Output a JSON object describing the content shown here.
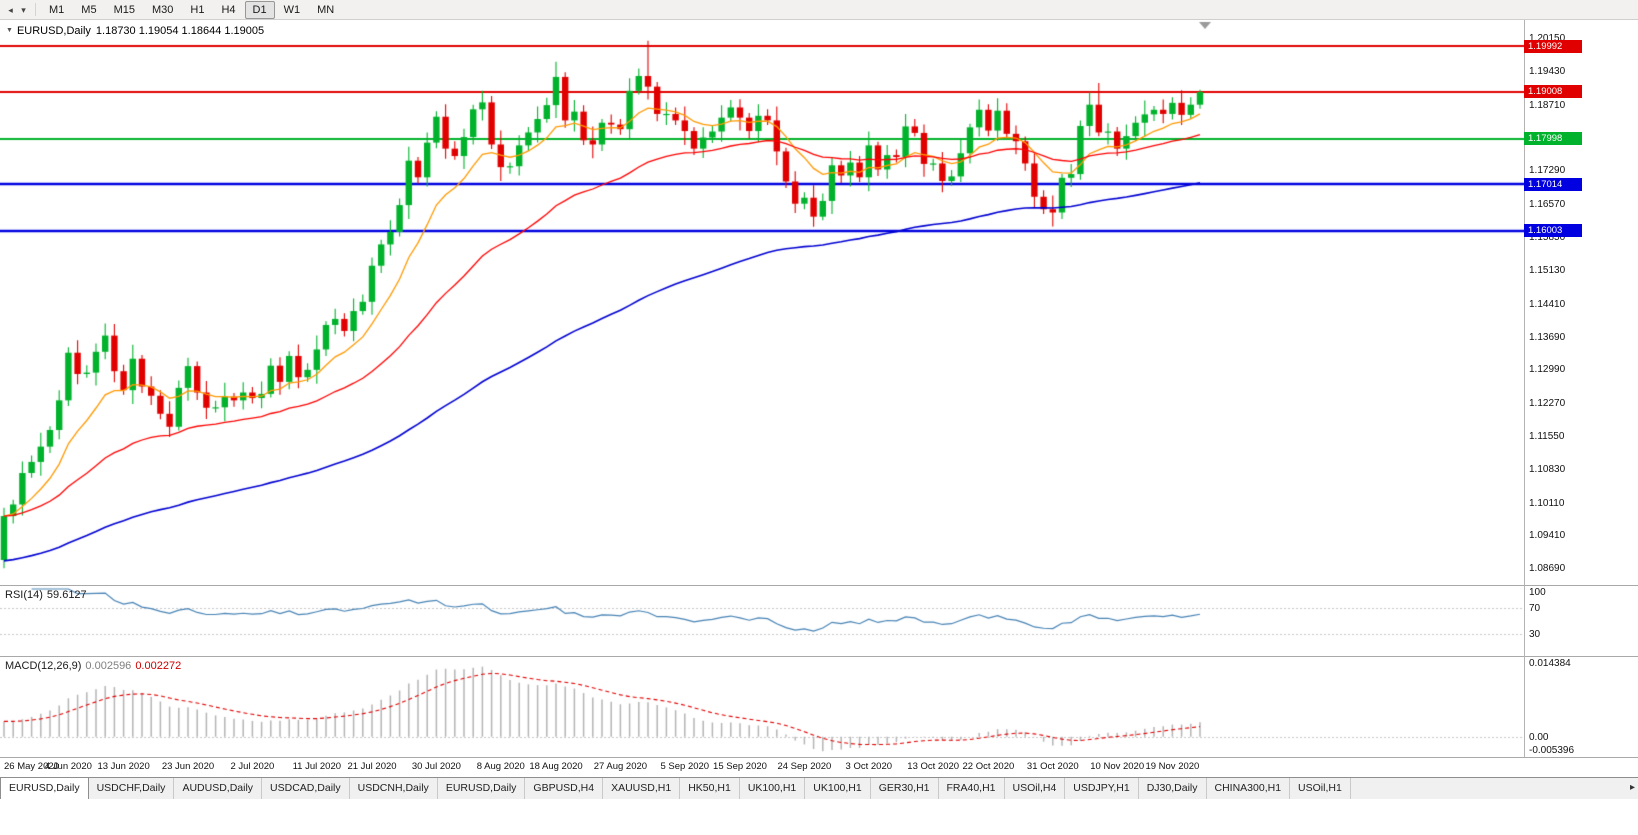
{
  "icons": {
    "collapse_left": "◂",
    "dropdown": "▾",
    "one_click_trading": "▼",
    "tab_scroll_right": "▸"
  },
  "toolbar": {
    "timeframes": [
      "M1",
      "M5",
      "M15",
      "M30",
      "H1",
      "H4",
      "D1",
      "W1",
      "MN"
    ],
    "active_timeframe": "D1"
  },
  "chart": {
    "symbol": "EURUSD,Daily",
    "ohlc_line": "1.18730 1.19054 1.18644 1.19005",
    "open": "1.18730",
    "high": "1.19054",
    "low": "1.18644",
    "close": "1.19005",
    "price_axis_labels": [
      "1.20150",
      "1.19430",
      "1.18710",
      "1.17990",
      "1.17290",
      "1.16570",
      "1.15850",
      "1.15130",
      "1.14410",
      "1.13690",
      "1.12990",
      "1.12270",
      "1.11550",
      "1.10830",
      "1.10110",
      "1.09410",
      "1.08690"
    ],
    "hlines": [
      {
        "label": "1.19992",
        "value": 1.19992,
        "color": "#e10000"
      },
      {
        "label": "1.19008",
        "value": 1.19008,
        "color": "#e10000"
      },
      {
        "label": "1.17998",
        "value": 1.17998,
        "color": "#00b22c"
      },
      {
        "label": "1.17014",
        "value": 1.17014,
        "color": "#0000e0"
      },
      {
        "label": "1.16003",
        "value": 1.16003,
        "color": "#0000e0"
      }
    ],
    "date_labels": [
      "26 May 2020",
      "4 Jun 2020",
      "13 Jun 2020",
      "23 Jun 2020",
      "2 Jul 2020",
      "11 Jul 2020",
      "21 Jul 2020",
      "30 Jul 2020",
      "8 Aug 2020",
      "18 Aug 2020",
      "27 Aug 2020",
      "5 Sep 2020",
      "15 Sep 2020",
      "24 Sep 2020",
      "3 Oct 2020",
      "13 Oct 2020",
      "22 Oct 2020",
      "31 Oct 2020",
      "10 Nov 2020",
      "19 Nov 2020"
    ]
  },
  "rsi_panel": {
    "label": "RSI(14)",
    "value": "59.6127",
    "axis_labels": [
      "100",
      "70",
      "30"
    ],
    "levels": [
      70,
      30
    ]
  },
  "macd_panel": {
    "label": "MACD(12,26,9)",
    "value_main": "0.002596",
    "value_signal": "0.002272",
    "axis_labels": [
      "0.014384",
      "0.00",
      "-0.005396"
    ]
  },
  "tabs": {
    "active_index": 0,
    "items": [
      "EURUSD,Daily",
      "USDCHF,Daily",
      "AUDUSD,Daily",
      "USDCAD,Daily",
      "USDCNH,Daily",
      "EURUSD,Daily",
      "GBPUSD,H4",
      "XAUUSD,H1",
      "HK50,H1",
      "UK100,H1",
      "UK100,H1",
      "GER30,H1",
      "FRA40,H1",
      "USOil,H4",
      "USDJPY,H1",
      "DJ30,Daily",
      "CHINA300,H1",
      "USOil,H1"
    ],
    "active_tab": "EURUSD,Daily"
  },
  "chart_data": {
    "type": "candlestick",
    "symbol": "EURUSD",
    "timeframe": "Daily",
    "x_range": [
      "26 May 2020",
      "24 Nov 2020"
    ],
    "y_axis": {
      "min": 1.0835,
      "max": 1.2056
    },
    "up_color": "#00b22c",
    "down_color": "#e10000",
    "horizontal_levels": [
      1.19992,
      1.19008,
      1.17998,
      1.17014,
      1.16003
    ],
    "moving_averages": [
      {
        "name": "ma-fast",
        "method": "ema",
        "period": 10,
        "color": "#ff9900"
      },
      {
        "name": "ma-medium",
        "method": "ema",
        "period": 32,
        "color": "#ff0000"
      },
      {
        "name": "ma-slow",
        "method": "ema",
        "period": 90,
        "seed": 1.0885,
        "color": "#0000d2"
      }
    ],
    "rsi": {
      "period": 14,
      "current": 59.6127,
      "color": "#4682b4",
      "levels": [
        70,
        30
      ],
      "range": [
        0,
        100
      ]
    },
    "macd": {
      "fast": 12,
      "slow": 26,
      "signal": 9,
      "current_main": 0.002596,
      "current_signal": 0.002272,
      "histogram_color": "#b4b4b4",
      "signal_color": "#e10000",
      "axis_max": 0.014384,
      "axis_min": -0.005396
    },
    "candles": [
      [
        1.0889,
        1.1002,
        1.0871,
        1.0984
      ],
      [
        1.0984,
        1.1019,
        1.0968,
        1.1009
      ],
      [
        1.1009,
        1.1102,
        1.0985,
        1.1077
      ],
      [
        1.1077,
        1.1115,
        1.1067,
        1.1101
      ],
      [
        1.1101,
        1.1164,
        1.1071,
        1.1134
      ],
      [
        1.1134,
        1.1178,
        1.112,
        1.117
      ],
      [
        1.117,
        1.1256,
        1.115,
        1.1234
      ],
      [
        1.1234,
        1.1349,
        1.1222,
        1.1337
      ],
      [
        1.1337,
        1.1364,
        1.1269,
        1.1291
      ],
      [
        1.1291,
        1.131,
        1.1283,
        1.1294
      ],
      [
        1.1294,
        1.1357,
        1.1266,
        1.1339
      ],
      [
        1.1339,
        1.14,
        1.1323,
        1.1374
      ],
      [
        1.1374,
        1.1399,
        1.1273,
        1.1297
      ],
      [
        1.1297,
        1.1311,
        1.1246,
        1.1256
      ],
      [
        1.1256,
        1.1354,
        1.1226,
        1.1324
      ],
      [
        1.1324,
        1.1332,
        1.125,
        1.1264
      ],
      [
        1.1264,
        1.1286,
        1.1224,
        1.1244
      ],
      [
        1.1244,
        1.1256,
        1.1193,
        1.1205
      ],
      [
        1.1205,
        1.1232,
        1.1155,
        1.1177
      ],
      [
        1.1177,
        1.1277,
        1.1169,
        1.1261
      ],
      [
        1.1261,
        1.1326,
        1.1233,
        1.1308
      ],
      [
        1.1308,
        1.1318,
        1.1235,
        1.1251
      ],
      [
        1.1251,
        1.1276,
        1.1194,
        1.1218
      ],
      [
        1.1218,
        1.1233,
        1.1208,
        1.1219
      ],
      [
        1.1219,
        1.1272,
        1.1189,
        1.1242
      ],
      [
        1.1242,
        1.125,
        1.122,
        1.1234
      ],
      [
        1.1234,
        1.1273,
        1.1214,
        1.1251
      ],
      [
        1.1251,
        1.1263,
        1.1227,
        1.1239
      ],
      [
        1.1239,
        1.1275,
        1.1217,
        1.1248
      ],
      [
        1.1248,
        1.1325,
        1.124,
        1.1309
      ],
      [
        1.1309,
        1.1327,
        1.1246,
        1.1274
      ],
      [
        1.1274,
        1.134,
        1.1258,
        1.133
      ],
      [
        1.133,
        1.1355,
        1.126,
        1.1284
      ],
      [
        1.1284,
        1.1314,
        1.1274,
        1.13
      ],
      [
        1.13,
        1.1374,
        1.127,
        1.1344
      ],
      [
        1.1344,
        1.1405,
        1.133,
        1.1397
      ],
      [
        1.1397,
        1.1432,
        1.1377,
        1.141
      ],
      [
        1.141,
        1.1422,
        1.1372,
        1.1384
      ],
      [
        1.1384,
        1.1454,
        1.1362,
        1.1427
      ],
      [
        1.1427,
        1.1463,
        1.1419,
        1.1447
      ],
      [
        1.1447,
        1.1543,
        1.1419,
        1.1525
      ],
      [
        1.1525,
        1.1581,
        1.1509,
        1.1571
      ],
      [
        1.1571,
        1.1623,
        1.1547,
        1.1598
      ],
      [
        1.1598,
        1.167,
        1.1588,
        1.1656
      ],
      [
        1.1656,
        1.1782,
        1.1626,
        1.1752
      ],
      [
        1.1752,
        1.176,
        1.1702,
        1.1716
      ],
      [
        1.1716,
        1.1813,
        1.1696,
        1.1791
      ],
      [
        1.1791,
        1.1859,
        1.1779,
        1.1847
      ],
      [
        1.1847,
        1.1874,
        1.1756,
        1.1778
      ],
      [
        1.1778,
        1.1794,
        1.1754,
        1.1762
      ],
      [
        1.1762,
        1.1821,
        1.1734,
        1.1803
      ],
      [
        1.1803,
        1.1873,
        1.1787,
        1.1863
      ],
      [
        1.1863,
        1.1903,
        1.1839,
        1.1878
      ],
      [
        1.1878,
        1.1892,
        1.1777,
        1.1787
      ],
      [
        1.1787,
        1.1817,
        1.1708,
        1.1738
      ],
      [
        1.1738,
        1.1748,
        1.1724,
        1.174
      ],
      [
        1.174,
        1.1807,
        1.172,
        1.1785
      ],
      [
        1.1785,
        1.1825,
        1.1773,
        1.1813
      ],
      [
        1.1813,
        1.1869,
        1.1791,
        1.1842
      ],
      [
        1.1842,
        1.1888,
        1.1834,
        1.1872
      ],
      [
        1.1872,
        1.1966,
        1.1844,
        1.1933
      ],
      [
        1.1933,
        1.1943,
        1.1823,
        1.1839
      ],
      [
        1.1839,
        1.1883,
        1.1815,
        1.1858
      ],
      [
        1.1858,
        1.1872,
        1.1786,
        1.1796
      ],
      [
        1.1796,
        1.1826,
        1.1757,
        1.1787
      ],
      [
        1.1787,
        1.1842,
        1.1773,
        1.1834
      ],
      [
        1.1834,
        1.1852,
        1.181,
        1.183
      ],
      [
        1.183,
        1.1842,
        1.1808,
        1.182
      ],
      [
        1.182,
        1.193,
        1.1798,
        1.1903
      ],
      [
        1.1903,
        1.1951,
        1.1895,
        1.1935
      ],
      [
        1.1935,
        1.2011,
        1.1884,
        1.1912
      ],
      [
        1.1912,
        1.1922,
        1.1837,
        1.1853
      ],
      [
        1.1853,
        1.1878,
        1.1829,
        1.1853
      ],
      [
        1.1853,
        1.1867,
        1.1829,
        1.1839
      ],
      [
        1.1839,
        1.1869,
        1.1786,
        1.1816
      ],
      [
        1.1816,
        1.1824,
        1.1764,
        1.1778
      ],
      [
        1.1778,
        1.1824,
        1.1758,
        1.1802
      ],
      [
        1.1802,
        1.1827,
        1.179,
        1.1815
      ],
      [
        1.1815,
        1.1872,
        1.1793,
        1.1845
      ],
      [
        1.1845,
        1.1883,
        1.1837,
        1.1867
      ],
      [
        1.1867,
        1.1885,
        1.1817,
        1.1845
      ],
      [
        1.1845,
        1.1855,
        1.18,
        1.1816
      ],
      [
        1.1816,
        1.1874,
        1.1792,
        1.1849
      ],
      [
        1.1849,
        1.1863,
        1.1829,
        1.1839
      ],
      [
        1.1839,
        1.1869,
        1.1742,
        1.1772
      ],
      [
        1.1772,
        1.178,
        1.1693,
        1.1707
      ],
      [
        1.1707,
        1.1729,
        1.1639,
        1.1659
      ],
      [
        1.1659,
        1.1684,
        1.1647,
        1.1672
      ],
      [
        1.1672,
        1.1699,
        1.1609,
        1.1631
      ],
      [
        1.1631,
        1.1681,
        1.1623,
        1.1665
      ],
      [
        1.1665,
        1.176,
        1.1637,
        1.1742
      ],
      [
        1.1742,
        1.1752,
        1.1704,
        1.172
      ],
      [
        1.172,
        1.1773,
        1.1696,
        1.1748
      ],
      [
        1.1748,
        1.1762,
        1.1706,
        1.1716
      ],
      [
        1.1716,
        1.1815,
        1.1686,
        1.1785
      ],
      [
        1.1785,
        1.1793,
        1.1719,
        1.1733
      ],
      [
        1.1733,
        1.1786,
        1.1713,
        1.1764
      ],
      [
        1.1764,
        1.1776,
        1.1748,
        1.176
      ],
      [
        1.176,
        1.1853,
        1.1738,
        1.1826
      ],
      [
        1.1826,
        1.1842,
        1.1804,
        1.1812
      ],
      [
        1.1812,
        1.183,
        1.1717,
        1.1745
      ],
      [
        1.1745,
        1.1756,
        1.173,
        1.1746
      ],
      [
        1.1746,
        1.1771,
        1.1684,
        1.1708
      ],
      [
        1.1708,
        1.1732,
        1.1698,
        1.1718
      ],
      [
        1.1718,
        1.1798,
        1.1706,
        1.1768
      ],
      [
        1.1768,
        1.1832,
        1.1746,
        1.1824
      ],
      [
        1.1824,
        1.1884,
        1.1804,
        1.1862
      ],
      [
        1.1862,
        1.1874,
        1.1805,
        1.1817
      ],
      [
        1.1817,
        1.1887,
        1.1795,
        1.186
      ],
      [
        1.186,
        1.1876,
        1.1802,
        1.181
      ],
      [
        1.181,
        1.1828,
        1.1766,
        1.1794
      ],
      [
        1.1794,
        1.1804,
        1.173,
        1.1746
      ],
      [
        1.1746,
        1.1771,
        1.165,
        1.1674
      ],
      [
        1.1674,
        1.1688,
        1.1637,
        1.1647
      ],
      [
        1.1647,
        1.1677,
        1.161,
        1.164
      ],
      [
        1.164,
        1.1723,
        1.1626,
        1.1715
      ],
      [
        1.1715,
        1.1745,
        1.1695,
        1.1723
      ],
      [
        1.1723,
        1.1839,
        1.1711,
        1.1827
      ],
      [
        1.1827,
        1.19,
        1.1805,
        1.1873
      ],
      [
        1.1873,
        1.192,
        1.1805,
        1.1813
      ],
      [
        1.1813,
        1.1833,
        1.1787,
        1.1815
      ],
      [
        1.1815,
        1.1825,
        1.1762,
        1.1778
      ],
      [
        1.1778,
        1.183,
        1.1754,
        1.1805
      ],
      [
        1.1805,
        1.1848,
        1.1795,
        1.1834
      ],
      [
        1.1834,
        1.1882,
        1.1804,
        1.1852
      ],
      [
        1.1852,
        1.187,
        1.1838,
        1.1862
      ],
      [
        1.1862,
        1.1884,
        1.1833,
        1.1853
      ],
      [
        1.1853,
        1.1889,
        1.1841,
        1.1877
      ],
      [
        1.1877,
        1.1904,
        1.1829,
        1.1851
      ],
      [
        1.1851,
        1.1889,
        1.1843,
        1.1873
      ],
      [
        1.1873,
        1.19054,
        1.18644,
        1.19005
      ]
    ]
  }
}
